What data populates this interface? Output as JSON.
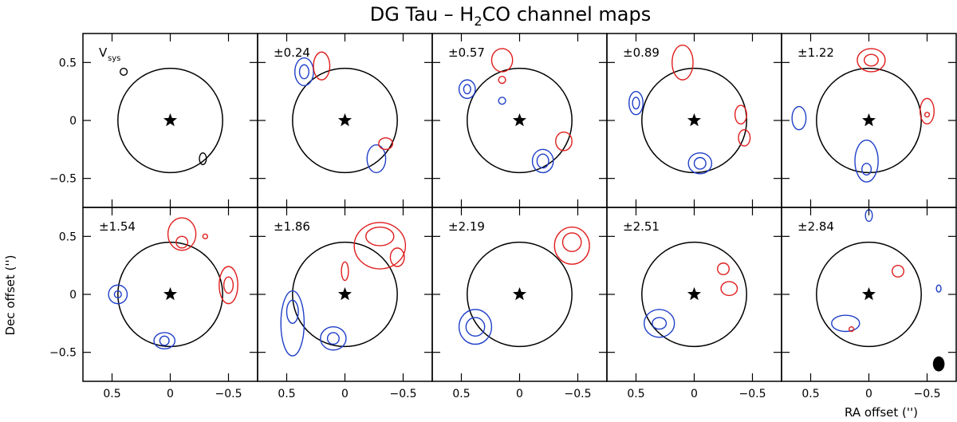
{
  "chart_data": {
    "type": "contour-channel-maps",
    "title": "DG Tau – H₂CO channel maps",
    "title_prefix": "DG Tau – H",
    "title_sub": "2",
    "title_suffix": "CO channel maps",
    "xlabel": "RA offset ('')",
    "ylabel": "Dec offset ('')",
    "xlim": [
      0.75,
      -0.75
    ],
    "ylim": [
      -0.75,
      0.75
    ],
    "xticks": [
      0.5,
      0,
      -0.5
    ],
    "xtick_labels": [
      "0.5",
      "0",
      "−0.5"
    ],
    "yticks": [
      0.5,
      0,
      -0.5
    ],
    "ytick_labels": [
      "0.5",
      "0",
      "−0.5"
    ],
    "colors": {
      "blue": "#1f3fc8",
      "red": "#e01e1e",
      "continuum": "#000000"
    },
    "continuum_radius_arcsec": 0.45,
    "beam": {
      "x": -0.6,
      "y": -0.6,
      "major": 0.065,
      "minor": 0.05
    },
    "panels": [
      {
        "label": "V",
        "label_sub": "sys",
        "blue": [],
        "red": [],
        "black": [
          {
            "x": 0.4,
            "y": 0.42,
            "rx": 0.03,
            "ry": 0.03
          },
          {
            "x": -0.28,
            "y": -0.33,
            "rx": 0.03,
            "ry": 0.05
          }
        ]
      },
      {
        "label": "±0.24",
        "blue": [
          {
            "x": 0.35,
            "y": 0.42,
            "rx": 0.08,
            "ry": 0.12
          },
          {
            "x": -0.27,
            "y": -0.33,
            "rx": 0.08,
            "ry": 0.12
          },
          {
            "x": 0.35,
            "y": 0.42,
            "rx": 0.04,
            "ry": 0.06
          }
        ],
        "red": [
          {
            "x": 0.2,
            "y": 0.47,
            "rx": 0.07,
            "ry": 0.12
          },
          {
            "x": -0.35,
            "y": -0.2,
            "rx": 0.06,
            "ry": 0.05
          }
        ],
        "black": []
      },
      {
        "label": "±0.57",
        "blue": [
          {
            "x": 0.45,
            "y": 0.27,
            "rx": 0.07,
            "ry": 0.08
          },
          {
            "x": 0.45,
            "y": 0.27,
            "rx": 0.03,
            "ry": 0.04
          },
          {
            "x": 0.15,
            "y": 0.17,
            "rx": 0.03,
            "ry": 0.03
          },
          {
            "x": -0.2,
            "y": -0.35,
            "rx": 0.09,
            "ry": 0.1
          },
          {
            "x": -0.2,
            "y": -0.35,
            "rx": 0.05,
            "ry": 0.06
          }
        ],
        "red": [
          {
            "x": 0.15,
            "y": 0.52,
            "rx": 0.09,
            "ry": 0.1
          },
          {
            "x": 0.15,
            "y": 0.35,
            "rx": 0.03,
            "ry": 0.03
          },
          {
            "x": -0.38,
            "y": -0.18,
            "rx": 0.07,
            "ry": 0.08
          }
        ],
        "black": []
      },
      {
        "label": "±0.89",
        "blue": [
          {
            "x": 0.5,
            "y": 0.15,
            "rx": 0.06,
            "ry": 0.1
          },
          {
            "x": 0.5,
            "y": 0.15,
            "rx": 0.03,
            "ry": 0.05
          },
          {
            "x": -0.05,
            "y": -0.37,
            "rx": 0.1,
            "ry": 0.09
          },
          {
            "x": -0.05,
            "y": -0.37,
            "rx": 0.05,
            "ry": 0.05
          }
        ],
        "red": [
          {
            "x": 0.1,
            "y": 0.5,
            "rx": 0.09,
            "ry": 0.15
          },
          {
            "x": -0.4,
            "y": 0.05,
            "rx": 0.05,
            "ry": 0.08
          },
          {
            "x": -0.43,
            "y": -0.15,
            "rx": 0.05,
            "ry": 0.07
          }
        ],
        "black": []
      },
      {
        "label": "±1.22",
        "blue": [
          {
            "x": 0.6,
            "y": 0.02,
            "rx": 0.06,
            "ry": 0.1
          },
          {
            "x": 0.02,
            "y": -0.35,
            "rx": 0.1,
            "ry": 0.18
          },
          {
            "x": 0.02,
            "y": -0.42,
            "rx": 0.04,
            "ry": 0.05
          }
        ],
        "red": [
          {
            "x": -0.02,
            "y": 0.52,
            "rx": 0.12,
            "ry": 0.1
          },
          {
            "x": -0.02,
            "y": 0.52,
            "rx": 0.06,
            "ry": 0.05
          },
          {
            "x": -0.5,
            "y": 0.08,
            "rx": 0.06,
            "ry": 0.11
          },
          {
            "x": -0.5,
            "y": 0.05,
            "rx": 0.02,
            "ry": 0.02
          }
        ],
        "black": []
      },
      {
        "label": "±1.54",
        "blue": [
          {
            "x": 0.45,
            "y": 0.0,
            "rx": 0.08,
            "ry": 0.08
          },
          {
            "x": 0.45,
            "y": 0.0,
            "rx": 0.03,
            "ry": 0.03
          },
          {
            "x": 0.05,
            "y": -0.4,
            "rx": 0.09,
            "ry": 0.07
          },
          {
            "x": 0.05,
            "y": -0.4,
            "rx": 0.04,
            "ry": 0.04
          }
        ],
        "red": [
          {
            "x": -0.1,
            "y": 0.52,
            "rx": 0.12,
            "ry": 0.14
          },
          {
            "x": -0.1,
            "y": 0.45,
            "rx": 0.05,
            "ry": 0.05
          },
          {
            "x": -0.5,
            "y": 0.08,
            "rx": 0.08,
            "ry": 0.16
          },
          {
            "x": -0.5,
            "y": 0.08,
            "rx": 0.04,
            "ry": 0.07
          },
          {
            "x": -0.3,
            "y": 0.5,
            "rx": 0.02,
            "ry": 0.02
          }
        ],
        "black": []
      },
      {
        "label": "±1.86",
        "blue": [
          {
            "x": 0.45,
            "y": -0.25,
            "rx": 0.1,
            "ry": 0.28
          },
          {
            "x": 0.45,
            "y": -0.15,
            "rx": 0.05,
            "ry": 0.1
          },
          {
            "x": 0.1,
            "y": -0.38,
            "rx": 0.11,
            "ry": 0.1
          },
          {
            "x": 0.1,
            "y": -0.38,
            "rx": 0.05,
            "ry": 0.05
          }
        ],
        "red": [
          {
            "x": -0.3,
            "y": 0.42,
            "rx": 0.22,
            "ry": 0.2
          },
          {
            "x": -0.3,
            "y": 0.5,
            "rx": 0.12,
            "ry": 0.08
          },
          {
            "x": -0.45,
            "y": 0.32,
            "rx": 0.06,
            "ry": 0.08
          },
          {
            "x": 0.0,
            "y": 0.2,
            "rx": 0.03,
            "ry": 0.08
          }
        ],
        "black": []
      },
      {
        "label": "±2.19",
        "blue": [
          {
            "x": 0.38,
            "y": -0.28,
            "rx": 0.14,
            "ry": 0.15
          },
          {
            "x": 0.38,
            "y": -0.28,
            "rx": 0.08,
            "ry": 0.08
          }
        ],
        "red": [
          {
            "x": -0.45,
            "y": 0.42,
            "rx": 0.15,
            "ry": 0.16
          },
          {
            "x": -0.45,
            "y": 0.45,
            "rx": 0.08,
            "ry": 0.08
          }
        ],
        "black": []
      },
      {
        "label": "±2.51",
        "blue": [
          {
            "x": 0.3,
            "y": -0.25,
            "rx": 0.13,
            "ry": 0.12
          },
          {
            "x": 0.3,
            "y": -0.25,
            "rx": 0.06,
            "ry": 0.05
          }
        ],
        "red": [
          {
            "x": -0.25,
            "y": 0.22,
            "rx": 0.05,
            "ry": 0.05
          },
          {
            "x": -0.3,
            "y": 0.05,
            "rx": 0.07,
            "ry": 0.06
          }
        ],
        "black": []
      },
      {
        "label": "±2.84",
        "blue": [
          {
            "x": 0.2,
            "y": -0.25,
            "rx": 0.12,
            "ry": 0.07
          },
          {
            "x": 0.0,
            "y": 0.68,
            "rx": 0.03,
            "ry": 0.05
          },
          {
            "x": -0.6,
            "y": 0.05,
            "rx": 0.02,
            "ry": 0.03
          }
        ],
        "red": [
          {
            "x": -0.25,
            "y": 0.2,
            "rx": 0.05,
            "ry": 0.05
          },
          {
            "x": 0.15,
            "y": -0.3,
            "rx": 0.02,
            "ry": 0.02
          }
        ],
        "black": []
      }
    ]
  }
}
